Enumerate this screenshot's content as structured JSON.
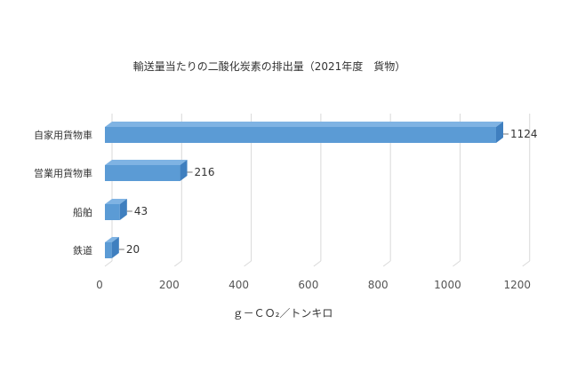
{
  "chart_data": {
    "type": "bar",
    "orientation": "horizontal",
    "style": "3d",
    "title": "輸送量当たりの二酸化炭素の排出量（2021年度　貨物）",
    "categories": [
      "自家用貨物車",
      "営業用貨物車",
      "船舶",
      "鉄道"
    ],
    "values": [
      1124,
      216,
      43,
      20
    ],
    "data_labels": [
      "1124",
      "216",
      "43",
      "20"
    ],
    "xlabel": "ｇ－ＣＯ₂／トンキロ",
    "ylabel": "",
    "xlim": [
      0,
      1200
    ],
    "xticks": [
      "0",
      "200",
      "400",
      "600",
      "800",
      "1000",
      "1200"
    ],
    "grid": true,
    "colors": {
      "bar_front": "#5b9bd5",
      "bar_top": "#7fb3e3",
      "bar_side": "#3f7fbf",
      "grid": "#d9d9d9"
    }
  }
}
